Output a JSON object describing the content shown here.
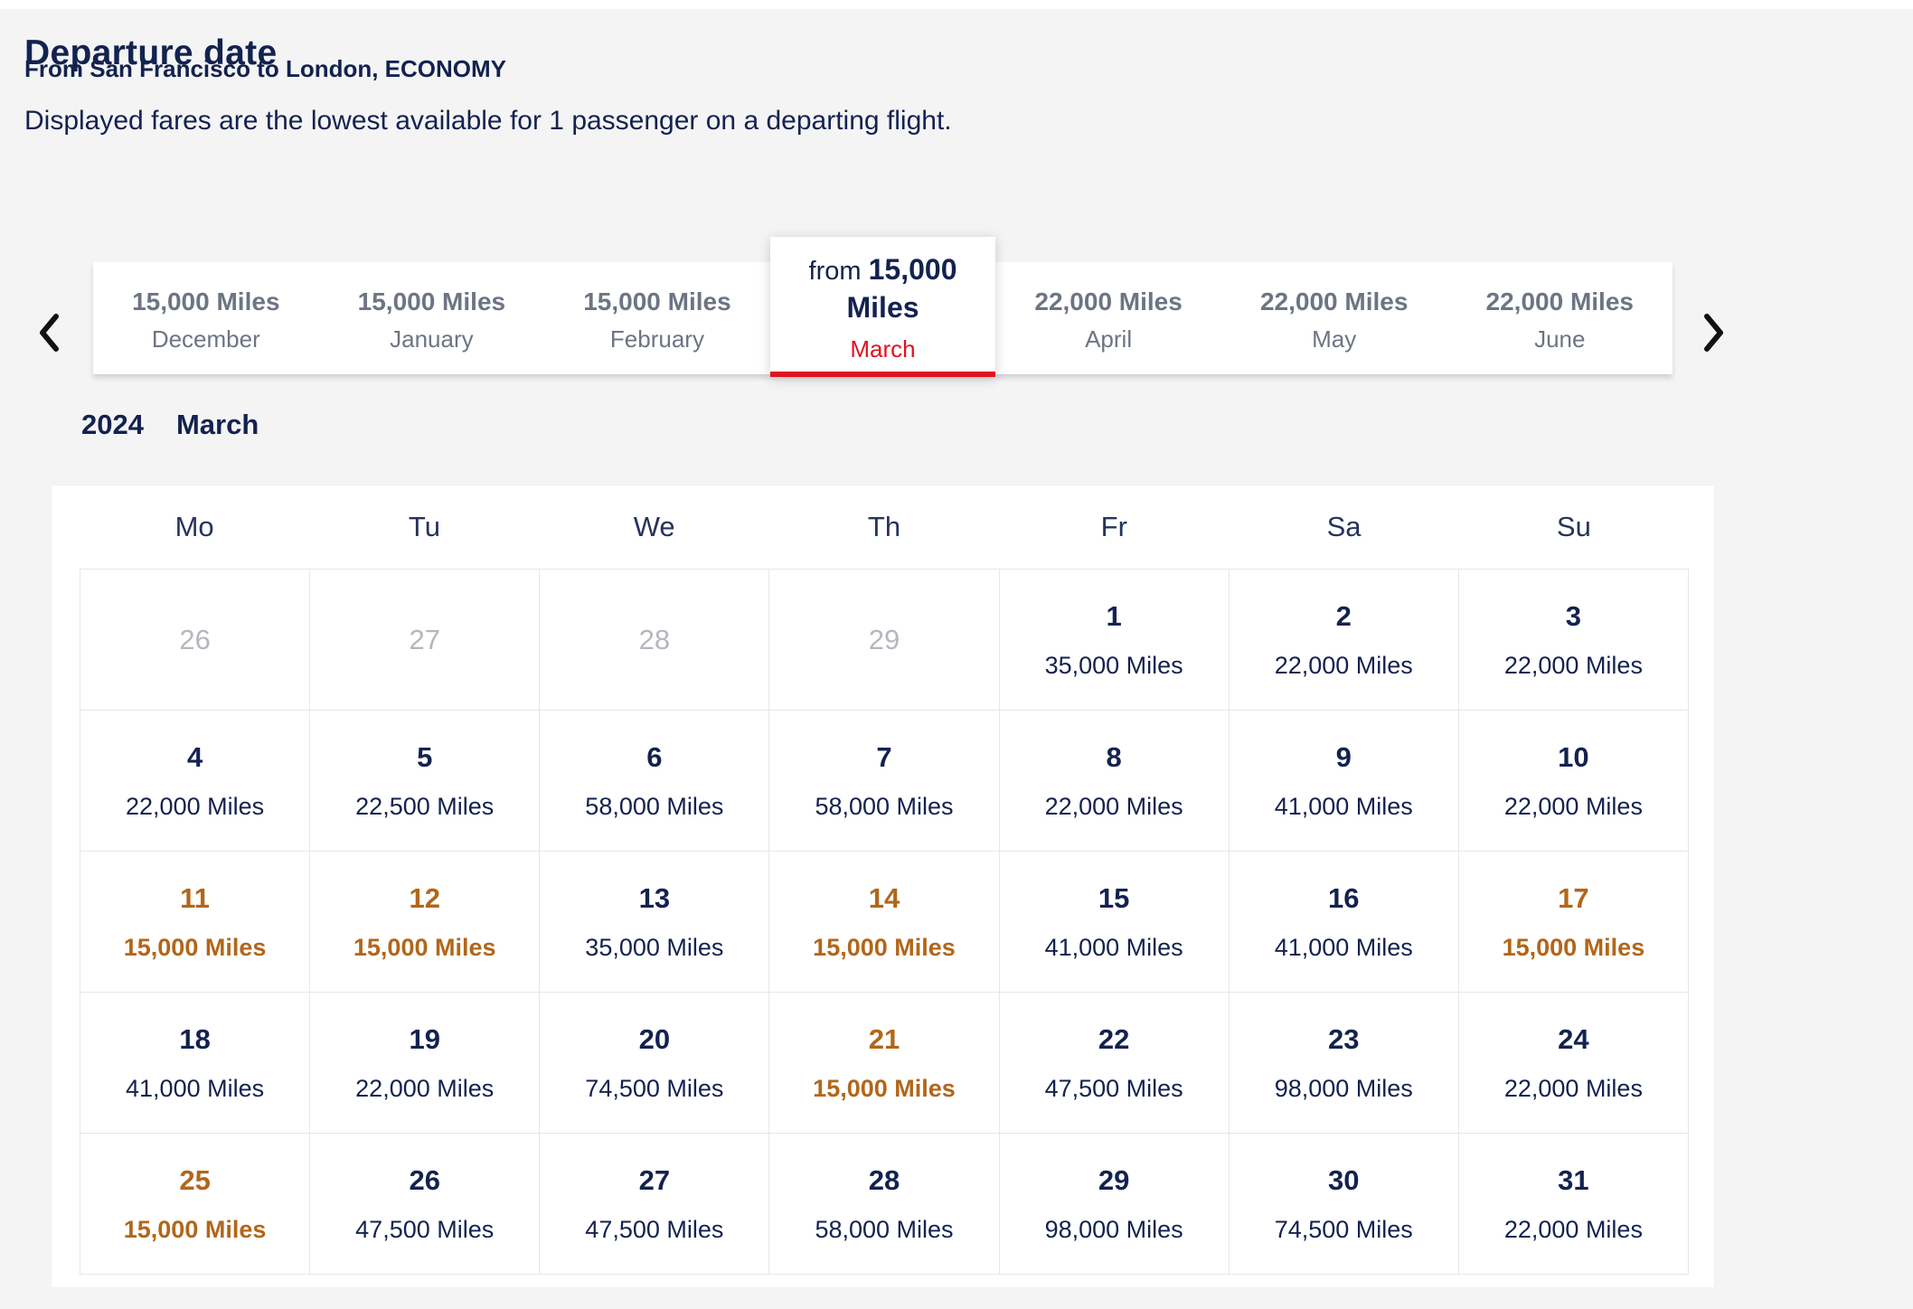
{
  "page": {
    "title": "Departure date",
    "subtitle": "From San Francisco to London, ECONOMY",
    "description": "Displayed fares are the lowest available for 1 passenger on a departing flight."
  },
  "colors": {
    "navy": "#13224f",
    "red": "#e0131f",
    "deal_copper": "#b2661a",
    "tab_gray": "#6d7483",
    "muted_gray": "#b3b7be",
    "page_bg": "#f4f4f5",
    "grid_border": "#e7e7ea"
  },
  "carousel": {
    "prev_icon": "chevron-left",
    "next_icon": "chevron-right",
    "selected_prefix": "from",
    "months": [
      {
        "price": "15,000 Miles",
        "label": "December",
        "selected": false
      },
      {
        "price": "15,000 Miles",
        "label": "January",
        "selected": false
      },
      {
        "price": "15,000 Miles",
        "label": "February",
        "selected": false
      },
      {
        "price": "15,000 Miles",
        "label": "March",
        "selected": true
      },
      {
        "price": "22,000 Miles",
        "label": "April",
        "selected": false
      },
      {
        "price": "22,000 Miles",
        "label": "May",
        "selected": false
      },
      {
        "price": "22,000 Miles",
        "label": "June",
        "selected": false
      }
    ]
  },
  "calendar": {
    "year": "2024",
    "month": "March",
    "weekdays": [
      "Mo",
      "Tu",
      "We",
      "Th",
      "Fr",
      "Sa",
      "Su"
    ],
    "weeks": [
      [
        {
          "day": "26",
          "state": "muted"
        },
        {
          "day": "27",
          "state": "muted"
        },
        {
          "day": "28",
          "state": "muted"
        },
        {
          "day": "29",
          "state": "muted"
        },
        {
          "day": "1",
          "price": "35,000 Miles",
          "state": "normal"
        },
        {
          "day": "2",
          "price": "22,000 Miles",
          "state": "normal"
        },
        {
          "day": "3",
          "price": "22,000 Miles",
          "state": "normal"
        }
      ],
      [
        {
          "day": "4",
          "price": "22,000 Miles",
          "state": "normal"
        },
        {
          "day": "5",
          "price": "22,500 Miles",
          "state": "normal"
        },
        {
          "day": "6",
          "price": "58,000 Miles",
          "state": "normal"
        },
        {
          "day": "7",
          "price": "58,000 Miles",
          "state": "normal"
        },
        {
          "day": "8",
          "price": "22,000 Miles",
          "state": "normal"
        },
        {
          "day": "9",
          "price": "41,000 Miles",
          "state": "normal"
        },
        {
          "day": "10",
          "price": "22,000 Miles",
          "state": "normal"
        }
      ],
      [
        {
          "day": "11",
          "price": "15,000 Miles",
          "state": "deal"
        },
        {
          "day": "12",
          "price": "15,000 Miles",
          "state": "deal"
        },
        {
          "day": "13",
          "price": "35,000 Miles",
          "state": "normal"
        },
        {
          "day": "14",
          "price": "15,000 Miles",
          "state": "deal"
        },
        {
          "day": "15",
          "price": "41,000 Miles",
          "state": "normal"
        },
        {
          "day": "16",
          "price": "41,000 Miles",
          "state": "normal"
        },
        {
          "day": "17",
          "price": "15,000 Miles",
          "state": "deal"
        }
      ],
      [
        {
          "day": "18",
          "price": "41,000 Miles",
          "state": "normal"
        },
        {
          "day": "19",
          "price": "22,000 Miles",
          "state": "normal"
        },
        {
          "day": "20",
          "price": "74,500 Miles",
          "state": "normal"
        },
        {
          "day": "21",
          "price": "15,000 Miles",
          "state": "deal"
        },
        {
          "day": "22",
          "price": "47,500 Miles",
          "state": "normal"
        },
        {
          "day": "23",
          "price": "98,000 Miles",
          "state": "normal"
        },
        {
          "day": "24",
          "price": "22,000 Miles",
          "state": "normal"
        }
      ],
      [
        {
          "day": "25",
          "price": "15,000 Miles",
          "state": "deal"
        },
        {
          "day": "26",
          "price": "47,500 Miles",
          "state": "normal"
        },
        {
          "day": "27",
          "price": "47,500 Miles",
          "state": "normal"
        },
        {
          "day": "28",
          "price": "58,000 Miles",
          "state": "normal"
        },
        {
          "day": "29",
          "price": "98,000 Miles",
          "state": "normal"
        },
        {
          "day": "30",
          "price": "74,500 Miles",
          "state": "normal"
        },
        {
          "day": "31",
          "price": "22,000 Miles",
          "state": "normal"
        }
      ]
    ]
  }
}
